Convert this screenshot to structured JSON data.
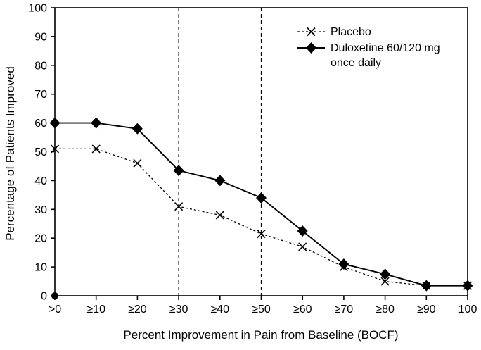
{
  "chart_data": {
    "type": "line",
    "title": "",
    "xlabel": "Percent Improvement in Pain from Baseline (BOCF)",
    "ylabel": "Percentage of Patients Improved",
    "categories": [
      ">0",
      "≥10",
      "≥20",
      "≥30",
      "≥40",
      "≥50",
      "≥60",
      "≥70",
      "≥80",
      "≥90",
      "100"
    ],
    "ylim": [
      0,
      100
    ],
    "yticks": [
      0,
      10,
      20,
      30,
      40,
      50,
      60,
      70,
      80,
      90,
      100
    ],
    "grid": false,
    "legend_position": "top-right-inside",
    "reference_lines": {
      "style": "vertical-dashed",
      "at_categories": [
        "≥30",
        "≥50"
      ]
    },
    "origin_marker": {
      "category": ">0",
      "value": 0,
      "shape": "filled-circle"
    },
    "series": [
      {
        "name": "Placebo",
        "legend_lines": [
          "Placebo"
        ],
        "marker": "x-cross",
        "line_style": "dashed",
        "values": [
          51,
          51,
          46,
          31,
          28,
          21.5,
          17,
          10,
          5,
          3.5,
          3.5
        ]
      },
      {
        "name": "Duloxetine 60/120 mg once daily",
        "legend_lines": [
          "Duloxetine 60/120 mg",
          "once daily"
        ],
        "marker": "filled-diamond",
        "line_style": "solid",
        "values": [
          60,
          60,
          58,
          43.5,
          40,
          34,
          22.5,
          11,
          7.5,
          3.5,
          3.5
        ]
      }
    ],
    "colors": {
      "foreground": "#000000",
      "background": "#ffffff"
    }
  }
}
